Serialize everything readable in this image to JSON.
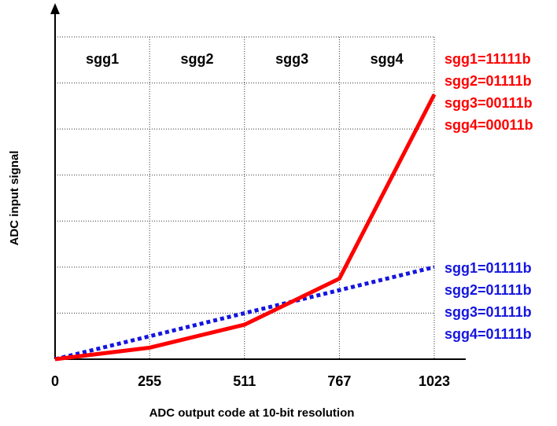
{
  "chart_data": {
    "type": "line",
    "xlabel": "ADC output code at 10-bit resolution",
    "ylabel": "ADC input signal",
    "x_ticks": [
      "0",
      "255",
      "511",
      "767",
      "1023"
    ],
    "xlim": [
      0,
      1023
    ],
    "ylim": [
      0,
      7
    ],
    "y_gridlines": [
      1,
      2,
      3,
      4,
      5,
      6,
      7
    ],
    "segments": [
      "sgg1",
      "sgg2",
      "sgg3",
      "sgg4"
    ],
    "grid": true,
    "series": [
      {
        "style": "solid",
        "color": "#ff0000",
        "x": [
          0,
          255,
          511,
          767,
          1023
        ],
        "y": [
          0,
          0.25,
          0.75,
          1.75,
          5.75
        ],
        "legend": [
          "sgg1=11111b",
          "sgg2=01111b",
          "sgg3=00111b",
          "sgg4=00011b"
        ]
      },
      {
        "style": "dotted",
        "color": "#1515e0",
        "x": [
          0,
          1023
        ],
        "y": [
          0,
          2.0
        ],
        "legend": [
          "sgg1=01111b",
          "sgg2=01111b",
          "sgg3=01111b",
          "sgg4=01111b"
        ]
      }
    ]
  }
}
